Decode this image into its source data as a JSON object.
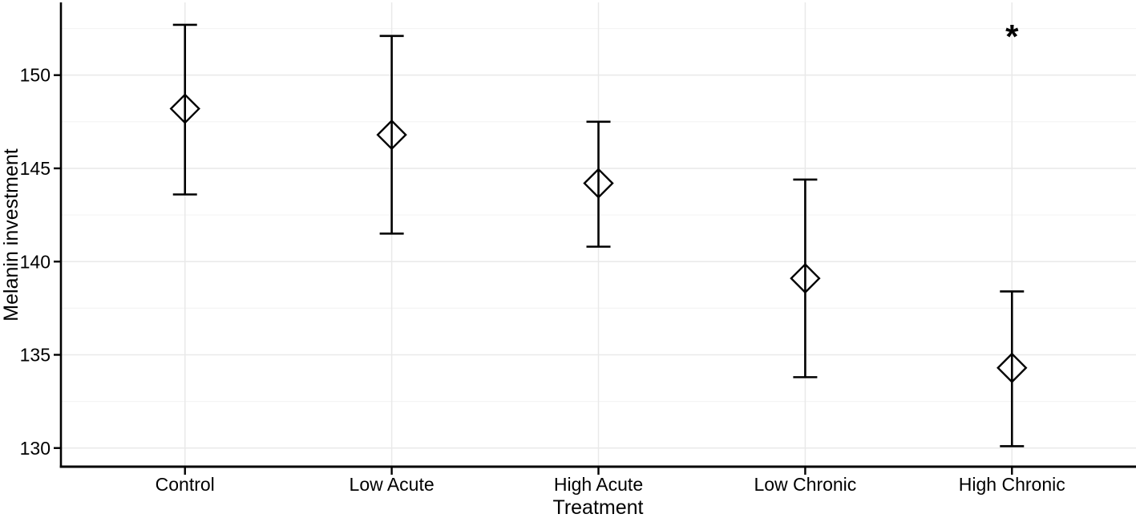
{
  "chart_data": {
    "type": "scatter",
    "subtype": "point-estimates-with-error-bars",
    "title": "",
    "xlabel": "Treatment",
    "ylabel": "Melanin investment",
    "categories": [
      "Control",
      "Low Acute",
      "High Acute",
      "Low Chronic",
      "High Chronic"
    ],
    "series": [
      {
        "name": "Melanin investment mean with error bars",
        "means": [
          148.2,
          146.8,
          144.2,
          139.1,
          134.3
        ],
        "upper": [
          152.7,
          152.1,
          147.5,
          144.4,
          138.4
        ],
        "lower": [
          143.6,
          141.5,
          140.8,
          133.8,
          130.1
        ]
      }
    ],
    "y_ticks": [
      130,
      135,
      140,
      145,
      150
    ],
    "y_minor_gridlines": [
      132.5,
      137.5,
      142.5,
      147.5,
      152.5
    ],
    "ylim": [
      129.0,
      153.9
    ],
    "grid": "horizontal major+minor, vertical at categories",
    "legend": "none",
    "marker": "open-diamond",
    "annotations": [
      {
        "text": "*",
        "category_index": 4,
        "y": 152.4
      }
    ],
    "colors": {
      "marker": "#000000",
      "errorbar": "#000000",
      "axis": "#000000",
      "text": "#000000",
      "grid_major": "#e9e9e9",
      "grid_minor": "#f4f4f4",
      "background": "#ffffff"
    }
  }
}
